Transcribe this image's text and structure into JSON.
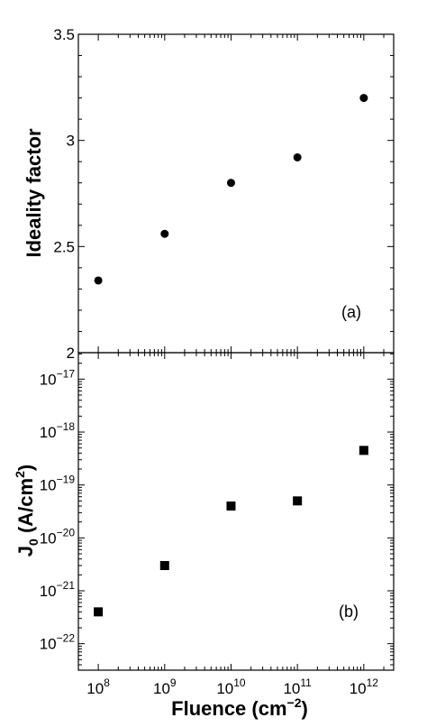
{
  "chart_data": [
    {
      "panel": "a",
      "type": "scatter",
      "panel_label": "(a)",
      "ylabel": "Ideality factor",
      "yscale": "linear",
      "ylim": [
        2,
        3.5
      ],
      "yticks": [
        2,
        2.5,
        3,
        3.5
      ],
      "ytick_labels": [
        "2",
        "2.5",
        "3",
        "3.5"
      ],
      "x": [
        100000000,
        1000000000,
        10000000000,
        100000000000,
        1000000000000
      ],
      "y": [
        2.34,
        2.56,
        2.8,
        2.92,
        3.2
      ],
      "marker": "circle",
      "color": "#000000"
    },
    {
      "panel": "b",
      "type": "scatter",
      "panel_label": "(b)",
      "ylabel_main": "J",
      "ylabel_sub": "0",
      "ylabel_rest": " (A/cm",
      "ylabel_sup": "2",
      "ylabel_end": ")",
      "yscale": "log",
      "ylim_exponents": [
        -22.5,
        -16.5
      ],
      "ytick_base": "10",
      "ytick_exponents": [
        "−17",
        "−18",
        "−19",
        "−20",
        "−21",
        "−22"
      ],
      "x": [
        100000000,
        1000000000,
        10000000000,
        100000000000,
        1000000000000
      ],
      "y": [
        4e-22,
        3e-21,
        4e-20,
        5e-20,
        4.5e-19
      ],
      "marker": "square",
      "color": "#000000"
    }
  ],
  "xaxis": {
    "scale": "log",
    "label_main": "Fluence (cm",
    "label_sup": "−2",
    "label_end": ")",
    "tick_base": "10",
    "tick_exponents": [
      "8",
      "9",
      "10",
      "11",
      "12"
    ]
  }
}
